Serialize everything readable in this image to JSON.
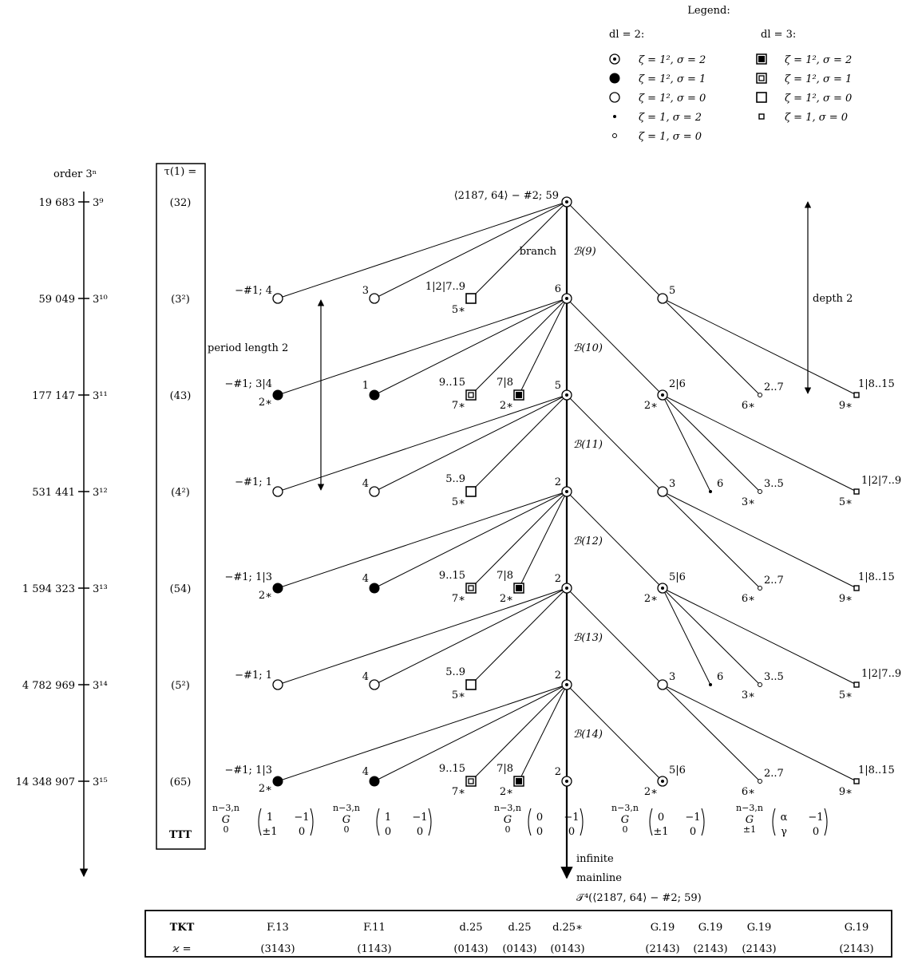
{
  "legend": {
    "title": "Legend:",
    "dl2_header": "dl = 2:",
    "dl3_header": "dl = 3:",
    "dl2": [
      {
        "icon": "circle-dot-icon",
        "text": "ζ = 1², σ = 2"
      },
      {
        "icon": "filled-circle-icon",
        "text": "ζ = 1², σ = 1"
      },
      {
        "icon": "open-circle-icon",
        "text": "ζ = 1², σ = 0"
      },
      {
        "icon": "small-dot-icon",
        "text": "ζ = 1, σ = 2"
      },
      {
        "icon": "small-circle-icon",
        "text": "ζ = 1, σ = 0"
      }
    ],
    "dl3": [
      {
        "icon": "filled-square-icon",
        "text": "ζ = 1², σ = 2"
      },
      {
        "icon": "nested-square-icon",
        "text": "ζ = 1², σ = 1"
      },
      {
        "icon": "open-square-icon",
        "text": "ζ = 1², σ = 0"
      },
      {
        "icon": "small-square-icon",
        "text": "ζ = 1, σ = 0"
      }
    ]
  },
  "order_axis": {
    "header": "order 3ⁿ",
    "levels": [
      {
        "order": "19 683",
        "power": "3⁹"
      },
      {
        "order": "59 049",
        "power": "3¹⁰"
      },
      {
        "order": "177 147",
        "power": "3¹¹"
      },
      {
        "order": "531 441",
        "power": "3¹²"
      },
      {
        "order": "1 594 323",
        "power": "3¹³"
      },
      {
        "order": "4 782 969",
        "power": "3¹⁴"
      },
      {
        "order": "14 348 907",
        "power": "3¹⁵"
      }
    ]
  },
  "tau_column": {
    "header": "τ(1) =",
    "values": [
      "(32)",
      "(3²)",
      "(43)",
      "(4²)",
      "(54)",
      "(5²)",
      "(65)"
    ],
    "footer": "TTT"
  },
  "root": {
    "label": "⟨2187, 64⟩ − #2; 59"
  },
  "annotations": {
    "branch": "branch",
    "period_length": "period length 2",
    "depth": "depth 2",
    "infinite_1": "infinite",
    "infinite_2": "mainline",
    "tree_label": "𝒯⁴(⟨2187, 64⟩ − #2; 59)"
  },
  "branches": [
    "ℬ(9)",
    "ℬ(10)",
    "ℬ(11)",
    "ℬ(12)",
    "ℬ(13)",
    "ℬ(14)"
  ],
  "vertex_labels": {
    "r1_c0": "−#1; 4",
    "r1_c1": "3",
    "r1_c2": "1|2|7..9",
    "r1_c2_sub": "5∗",
    "r1_m": "6",
    "r1_c5": "5",
    "r2_c0": "−#1; 3|4",
    "r2_c0_sub": "2∗",
    "r2_c1": "1",
    "r2_c2": "9..15",
    "r2_c2_sub": "7∗",
    "r2_c3": "7|8",
    "r2_c3_sub": "2∗",
    "r2_m": "5",
    "r2_c4": "2|6",
    "r2_c4_sub": "2∗",
    "r2_c6": "2..7",
    "r2_c6_sub": "6∗",
    "r2_c8": "1|8..15",
    "r2_c8_sub": "9∗",
    "r3_c0": "−#1; 1",
    "r3_c1": "4",
    "r3_c2": "5..9",
    "r3_c2_sub": "5∗",
    "r3_m": "2",
    "r3_c5": "3",
    "r3_c5b": "6",
    "r3_c6": "3..5",
    "r3_c6_sub": "3∗",
    "r3_c8": "1|2|7..9",
    "r3_c8_sub": "5∗",
    "r4_c0": "−#1; 1|3",
    "r4_c0_sub": "2∗",
    "r4_c1": "4",
    "r4_c2": "9..15",
    "r4_c2_sub": "7∗",
    "r4_c3": "7|8",
    "r4_c3_sub": "2∗",
    "r4_m": "2",
    "r4_c4": "5|6",
    "r4_c4_sub": "2∗",
    "r4_c6": "2..7",
    "r4_c6_sub": "6∗",
    "r4_c8": "1|8..15",
    "r4_c8_sub": "9∗",
    "r5_c0": "−#1; 1",
    "r5_c1": "4",
    "r5_c2": "5..9",
    "r5_c2_sub": "5∗",
    "r5_m": "2",
    "r5_c5": "3",
    "r5_c5b": "6",
    "r5_c6": "3..5",
    "r5_c6_sub": "3∗",
    "r5_c8": "1|2|7..9",
    "r5_c8_sub": "5∗",
    "r6_c0": "−#1; 1|3",
    "r6_c0_sub": "2∗",
    "r6_c1": "4",
    "r6_c2": "9..15",
    "r6_c2_sub": "7∗",
    "r6_c3": "7|8",
    "r6_c3_sub": "2∗",
    "r6_m": "2",
    "r6_c4": "5|6",
    "r6_c4_sub": "2∗",
    "r6_c6": "2..7",
    "r6_c6_sub": "6∗",
    "r6_c8": "1|8..15",
    "r6_c8_sub": "9∗"
  },
  "group_labels": [
    {
      "sym": "G",
      "sup": "n−3,n",
      "sub": "0",
      "m": [
        "1",
        "−1",
        "±1",
        "0"
      ]
    },
    {
      "sym": "G",
      "sup": "n−3,n",
      "sub": "0",
      "m": [
        "1",
        "−1",
        "0",
        "0"
      ]
    },
    {
      "sym": "G",
      "sup": "n−3,n",
      "sub": "0",
      "m": [
        "0",
        "−1",
        "0",
        "0"
      ]
    },
    {
      "sym": "G",
      "sup": "n−3,n",
      "sub": "0",
      "m": [
        "0",
        "−1",
        "±1",
        "0"
      ]
    },
    {
      "sym": "G",
      "sup": "n−3,n",
      "sub": "±1",
      "m": [
        "α",
        "−1",
        "γ",
        "0"
      ]
    }
  ],
  "bottom_table": {
    "row1_header": "TKT",
    "row2_header": "ϰ =",
    "tkt": [
      "F.13",
      "F.11",
      "d.25",
      "d.25",
      "d.25∗",
      "G.19",
      "G.19",
      "G.19",
      "G.19"
    ],
    "kappa": [
      "(3143)",
      "(1143)",
      "(0143)",
      "(0143)",
      "(0143)",
      "(2143)",
      "(2143)",
      "(2143)",
      "(2143)"
    ]
  }
}
